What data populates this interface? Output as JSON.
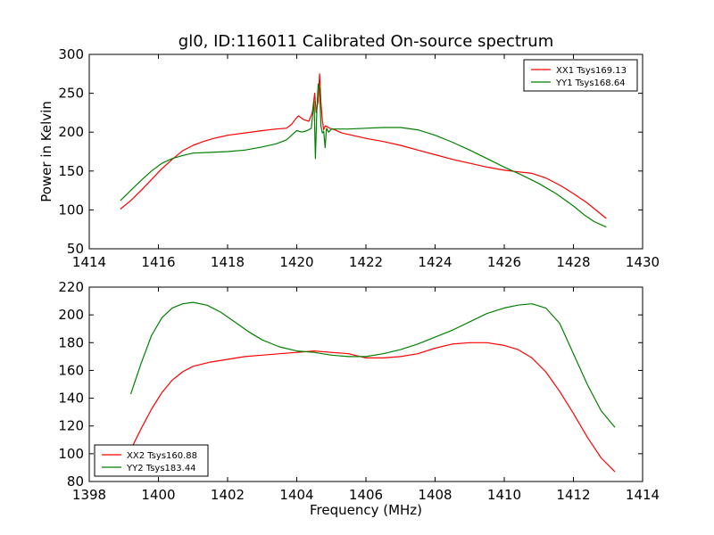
{
  "chart_data": [
    {
      "type": "line",
      "title": "gl0, ID:116011 Calibrated On-source spectrum",
      "xlabel": "",
      "ylabel": "Power in Kelvin",
      "xlim": [
        1414,
        1430
      ],
      "ylim": [
        50,
        300
      ],
      "xticks": [
        1414,
        1416,
        1418,
        1420,
        1422,
        1424,
        1426,
        1428,
        1430
      ],
      "yticks": [
        50,
        100,
        150,
        200,
        250,
        300
      ],
      "grid": false,
      "legend": "top-right",
      "series": [
        {
          "name": "XX1 Tsys169.13",
          "color": "#ff0000",
          "x": [
            1414.9,
            1415.2,
            1415.5,
            1415.8,
            1416.1,
            1416.4,
            1416.7,
            1417.0,
            1417.3,
            1417.6,
            1418.0,
            1418.5,
            1419.0,
            1419.4,
            1419.7,
            1419.85,
            1419.95,
            1420.05,
            1420.2,
            1420.35,
            1420.45,
            1420.52,
            1420.56,
            1420.62,
            1420.66,
            1420.7,
            1420.74,
            1420.78,
            1420.82,
            1420.88,
            1420.95,
            1421.1,
            1421.3,
            1421.6,
            1422.0,
            1422.5,
            1423.0,
            1423.5,
            1424.0,
            1424.5,
            1425.0,
            1425.5,
            1426.0,
            1426.4,
            1426.8,
            1427.2,
            1427.6,
            1428.0,
            1428.4,
            1428.7,
            1428.95
          ],
          "y": [
            101,
            112,
            125,
            139,
            153,
            165,
            176,
            183,
            188,
            192,
            196,
            199,
            202,
            204,
            205,
            210,
            216,
            221,
            216,
            214,
            225,
            250,
            225,
            240,
            275,
            238,
            215,
            203,
            208,
            207,
            205,
            203,
            199,
            196,
            192,
            188,
            183,
            177,
            171,
            165,
            160,
            155,
            151,
            149,
            147,
            141,
            132,
            121,
            109,
            98,
            89
          ]
        },
        {
          "name": "YY1 Tsys168.64",
          "color": "#008000",
          "x": [
            1414.9,
            1415.2,
            1415.5,
            1415.8,
            1416.1,
            1416.4,
            1416.7,
            1417.0,
            1417.5,
            1418.0,
            1418.5,
            1419.0,
            1419.4,
            1419.7,
            1419.9,
            1420.0,
            1420.15,
            1420.3,
            1420.42,
            1420.5,
            1420.54,
            1420.58,
            1420.62,
            1420.66,
            1420.7,
            1420.74,
            1420.78,
            1420.82,
            1420.86,
            1420.92,
            1421.0,
            1421.2,
            1421.5,
            1422.0,
            1422.5,
            1423.0,
            1423.5,
            1424.0,
            1424.5,
            1425.0,
            1425.5,
            1426.0,
            1426.5,
            1427.0,
            1427.5,
            1428.0,
            1428.3,
            1428.6,
            1428.95
          ],
          "y": [
            112,
            125,
            138,
            150,
            160,
            166,
            170,
            173,
            174,
            175,
            177,
            181,
            185,
            190,
            198,
            202,
            200,
            202,
            205,
            240,
            166,
            228,
            262,
            256,
            208,
            199,
            201,
            180,
            205,
            200,
            204,
            204,
            204,
            205,
            206,
            206,
            203,
            196,
            187,
            177,
            166,
            155,
            145,
            134,
            121,
            105,
            94,
            85,
            78
          ]
        }
      ]
    },
    {
      "type": "line",
      "title": "",
      "xlabel": "Frequency (MHz)",
      "ylabel": "",
      "xlim": [
        1398,
        1414
      ],
      "ylim": [
        80,
        220
      ],
      "xticks": [
        1398,
        1400,
        1402,
        1404,
        1406,
        1408,
        1410,
        1412,
        1414
      ],
      "yticks": [
        80,
        100,
        120,
        140,
        160,
        180,
        200,
        220
      ],
      "grid": false,
      "legend": "bottom-left",
      "series": [
        {
          "name": "XX2 Tsys160.88",
          "color": "#ff0000",
          "x": [
            1399.2,
            1399.5,
            1399.8,
            1400.1,
            1400.4,
            1400.7,
            1401.0,
            1401.5,
            1402.0,
            1402.5,
            1403.0,
            1403.5,
            1404.0,
            1404.5,
            1405.0,
            1405.5,
            1406.0,
            1406.5,
            1407.0,
            1407.5,
            1408.0,
            1408.5,
            1409.0,
            1409.5,
            1410.0,
            1410.4,
            1410.8,
            1411.2,
            1411.6,
            1412.0,
            1412.4,
            1412.8,
            1413.2
          ],
          "y": [
            103,
            118,
            132,
            144,
            153,
            159,
            163,
            166,
            168,
            170,
            171,
            172,
            173,
            174,
            173,
            172,
            169,
            169,
            170,
            172,
            176,
            179,
            180,
            180,
            178,
            175,
            169,
            159,
            145,
            129,
            112,
            97,
            87
          ]
        },
        {
          "name": "YY2 Tsys183.44",
          "color": "#008000",
          "x": [
            1399.2,
            1399.5,
            1399.8,
            1400.1,
            1400.4,
            1400.7,
            1401.0,
            1401.4,
            1401.8,
            1402.2,
            1402.6,
            1403.0,
            1403.5,
            1404.0,
            1404.5,
            1405.0,
            1405.5,
            1406.0,
            1406.5,
            1407.0,
            1407.5,
            1408.0,
            1408.5,
            1409.0,
            1409.5,
            1410.0,
            1410.4,
            1410.8,
            1411.2,
            1411.6,
            1412.0,
            1412.4,
            1412.8,
            1413.2
          ],
          "y": [
            143,
            165,
            185,
            198,
            205,
            208,
            209,
            207,
            202,
            195,
            188,
            182,
            177,
            174,
            173,
            171,
            170,
            170,
            172,
            175,
            179,
            184,
            189,
            195,
            201,
            205,
            207,
            208,
            205,
            194,
            172,
            150,
            131,
            119
          ]
        }
      ]
    }
  ]
}
